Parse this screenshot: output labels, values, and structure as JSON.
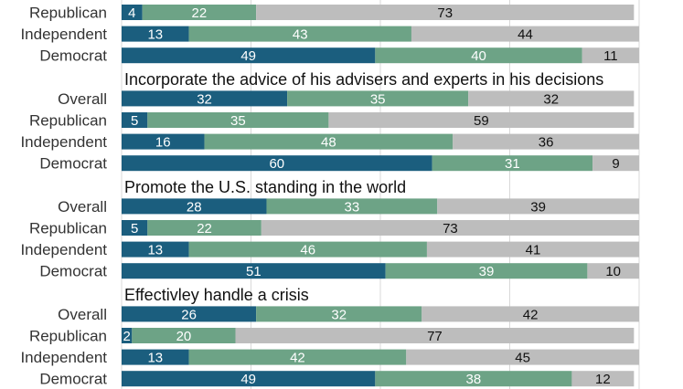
{
  "chart_data": {
    "type": "bar",
    "stacked": true,
    "orientation": "horizontal",
    "colors": [
      "#1b5e7e",
      "#6da386",
      "#bdbdbd"
    ],
    "label_colors": [
      "#ffffff",
      "#ffffff",
      "#111111"
    ],
    "grid": true,
    "xlim": [
      0,
      100
    ],
    "groups": [
      {
        "title": "",
        "rows": [
          {
            "label": "Republican",
            "values": [
              4,
              22,
              73
            ]
          },
          {
            "label": "Independent",
            "values": [
              13,
              43,
              44
            ]
          },
          {
            "label": "Democrat",
            "values": [
              49,
              40,
              11
            ]
          }
        ]
      },
      {
        "title": "Incorporate the advice of his advisers and experts in his decisions",
        "rows": [
          {
            "label": "Overall",
            "values": [
              32,
              35,
              32
            ]
          },
          {
            "label": "Republican",
            "values": [
              5,
              35,
              59
            ]
          },
          {
            "label": "Independent",
            "values": [
              16,
              48,
              36
            ]
          },
          {
            "label": "Democrat",
            "values": [
              60,
              31,
              9
            ]
          }
        ]
      },
      {
        "title": "Promote the U.S. standing in the world",
        "rows": [
          {
            "label": "Overall",
            "values": [
              28,
              33,
              39
            ]
          },
          {
            "label": "Republican",
            "values": [
              5,
              22,
              73
            ]
          },
          {
            "label": "Independent",
            "values": [
              13,
              46,
              41
            ]
          },
          {
            "label": "Democrat",
            "values": [
              51,
              39,
              10
            ]
          }
        ]
      },
      {
        "title": "Effectivley handle a crisis",
        "rows": [
          {
            "label": "Overall",
            "values": [
              26,
              32,
              42
            ]
          },
          {
            "label": "Republican",
            "values": [
              2,
              20,
              77
            ]
          },
          {
            "label": "Independent",
            "values": [
              13,
              42,
              45
            ]
          },
          {
            "label": "Democrat",
            "values": [
              49,
              38,
              12
            ]
          }
        ]
      }
    ]
  }
}
